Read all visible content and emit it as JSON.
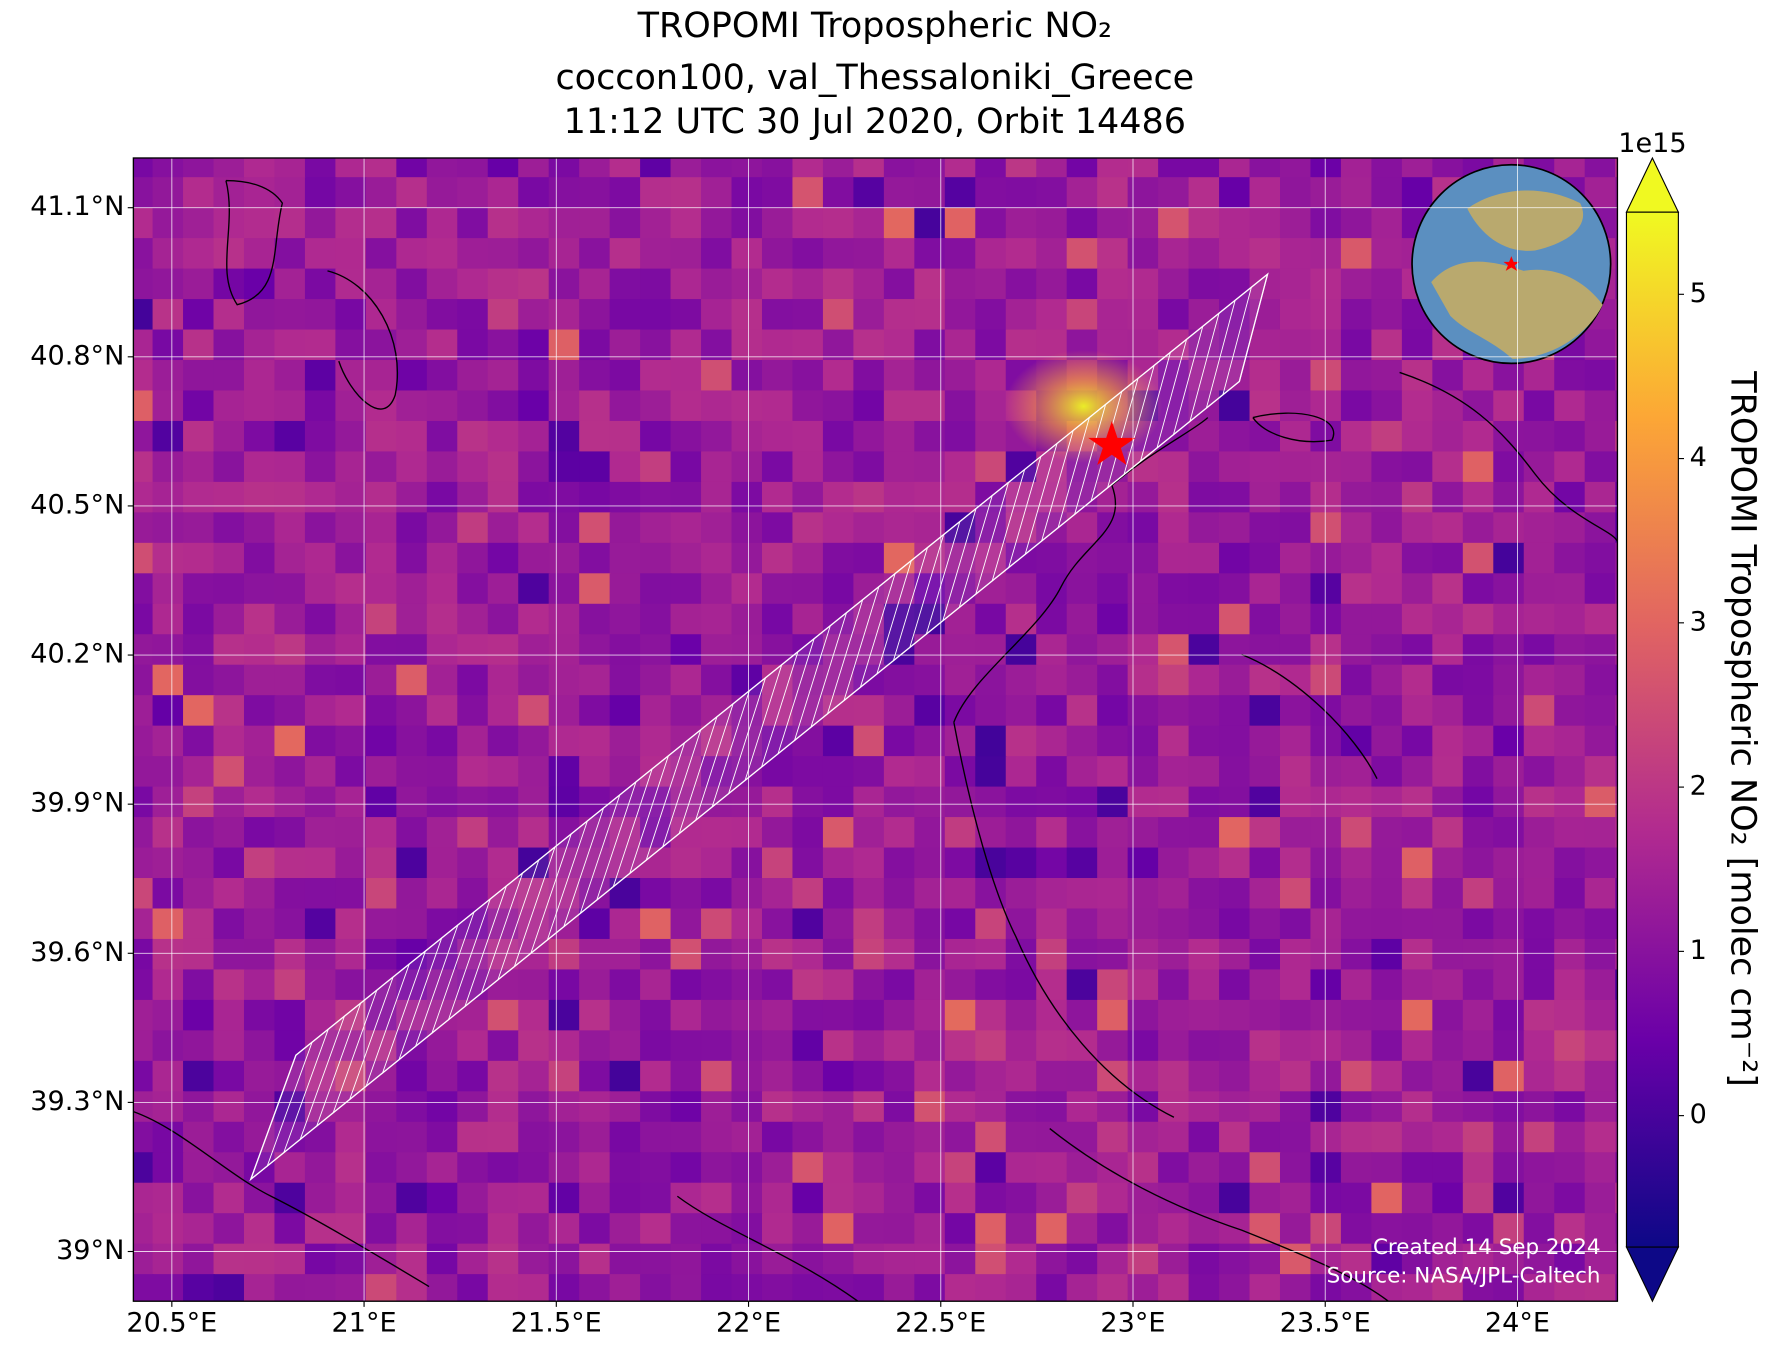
{
  "title": [
    "TROPOMI Tropospheric NO₂",
    "coccon100, val_Thessaloniki_Greece",
    "11:12 UTC 30 Jul 2020, Orbit 14486"
  ],
  "map": {
    "xlim": [
      20.4,
      24.26
    ],
    "ylim": [
      38.9,
      41.2
    ],
    "xticks": [
      {
        "value": 20.5,
        "label": "20.5°E"
      },
      {
        "value": 21,
        "label": "21°E"
      },
      {
        "value": 21.5,
        "label": "21.5°E"
      },
      {
        "value": 22,
        "label": "22°E"
      },
      {
        "value": 22.5,
        "label": "22.5°E"
      },
      {
        "value": 23,
        "label": "23°E"
      },
      {
        "value": 23.5,
        "label": "23.5°E"
      },
      {
        "value": 24,
        "label": "24°E"
      }
    ],
    "yticks": [
      {
        "value": 39,
        "label": "39°N"
      },
      {
        "value": 39.3,
        "label": "39.3°N"
      },
      {
        "value": 39.6,
        "label": "39.6°N"
      },
      {
        "value": 39.9,
        "label": "39.9°N"
      },
      {
        "value": 40.2,
        "label": "40.2°N"
      },
      {
        "value": 40.5,
        "label": "40.5°N"
      },
      {
        "value": 40.8,
        "label": "40.8°N"
      },
      {
        "value": 41.1,
        "label": "41.1°N"
      }
    ],
    "grid": true
  },
  "colorbar": {
    "lim": [
      -0.8,
      5.5
    ],
    "ticks": [
      0,
      1,
      2,
      3,
      4,
      5
    ],
    "offset_label": "1e15",
    "label": "TROPOMI Tropospheric NO₂ [molec cm⁻²]",
    "colormap": "plasma"
  },
  "credits": [
    "Created 14 Sep 2024",
    "Source: NASA/JPL-Caltech"
  ]
}
